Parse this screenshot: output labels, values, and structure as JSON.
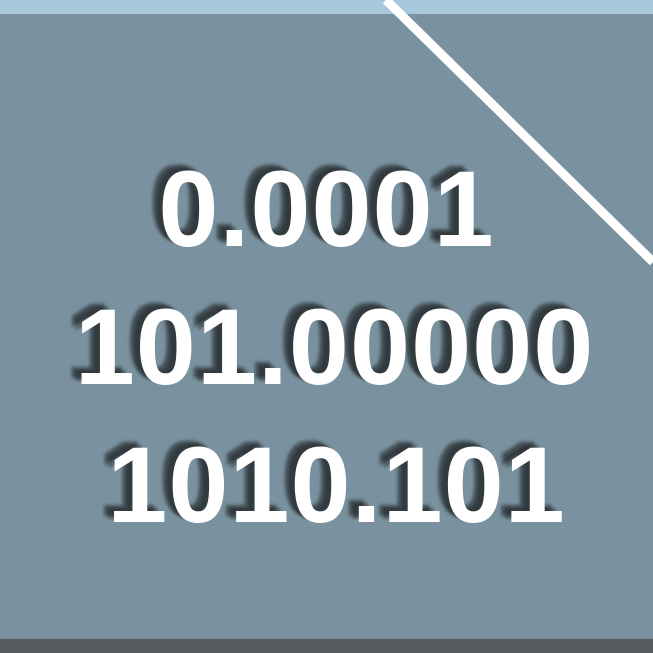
{
  "background_color": "#7a929f",
  "accent_colors": {
    "top_strip": "#a7c7da",
    "bottom_strip": "#555b5f",
    "diagonal_line": "#ffffff",
    "text": "#ffffff"
  },
  "numbers": [
    "0.0001",
    "101.00000",
    "1010.101"
  ]
}
